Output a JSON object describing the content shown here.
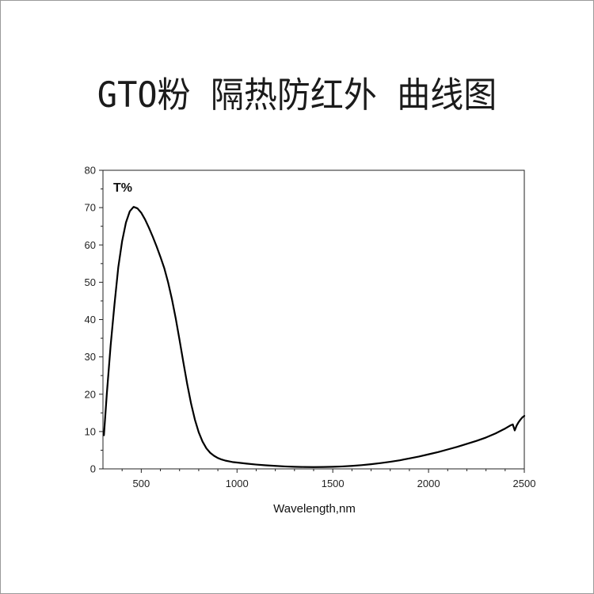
{
  "page": {
    "title": "GTO粉 隔热防红外 曲线图"
  },
  "chart_data": {
    "type": "line",
    "title": "GTO粉 隔热防红外 曲线图",
    "xlabel": "Wavelength,nm",
    "ylabel": "T%",
    "xlim": [
      300,
      2500
    ],
    "ylim": [
      0,
      80
    ],
    "x_ticks": [
      500,
      1000,
      1500,
      2000,
      2500
    ],
    "y_ticks": [
      0,
      10,
      20,
      30,
      40,
      50,
      60,
      70,
      80
    ],
    "grid": false,
    "series": [
      {
        "name": "",
        "color": "#000000",
        "x": [
          305,
          320,
          340,
          360,
          380,
          400,
          420,
          440,
          460,
          480,
          500,
          520,
          540,
          560,
          580,
          600,
          620,
          640,
          660,
          680,
          700,
          720,
          740,
          760,
          780,
          800,
          820,
          840,
          860,
          880,
          900,
          920,
          940,
          960,
          980,
          1000,
          1050,
          1100,
          1150,
          1200,
          1250,
          1300,
          1350,
          1400,
          1450,
          1500,
          1550,
          1600,
          1650,
          1700,
          1750,
          1800,
          1850,
          1900,
          1950,
          2000,
          2050,
          2100,
          2150,
          2200,
          2250,
          2300,
          2350,
          2400,
          2430,
          2440,
          2450,
          2460,
          2470,
          2480,
          2490,
          2500
        ],
        "values": [
          9,
          20,
          33,
          44,
          54,
          61,
          66,
          69,
          70.2,
          69.8,
          68.6,
          66.8,
          64.6,
          62.2,
          59.6,
          56.8,
          53.8,
          50.0,
          45.5,
          40.3,
          34.5,
          28.5,
          22.7,
          17.5,
          13.2,
          9.8,
          7.3,
          5.5,
          4.3,
          3.5,
          2.9,
          2.5,
          2.2,
          2.0,
          1.8,
          1.7,
          1.4,
          1.15,
          0.95,
          0.8,
          0.65,
          0.55,
          0.5,
          0.48,
          0.5,
          0.55,
          0.65,
          0.8,
          1.0,
          1.25,
          1.55,
          1.9,
          2.3,
          2.8,
          3.3,
          3.9,
          4.5,
          5.2,
          5.9,
          6.7,
          7.5,
          8.4,
          9.5,
          10.8,
          11.7,
          11.9,
          10.3,
          11.6,
          12.5,
          13.2,
          13.8,
          14.2
        ]
      }
    ]
  }
}
